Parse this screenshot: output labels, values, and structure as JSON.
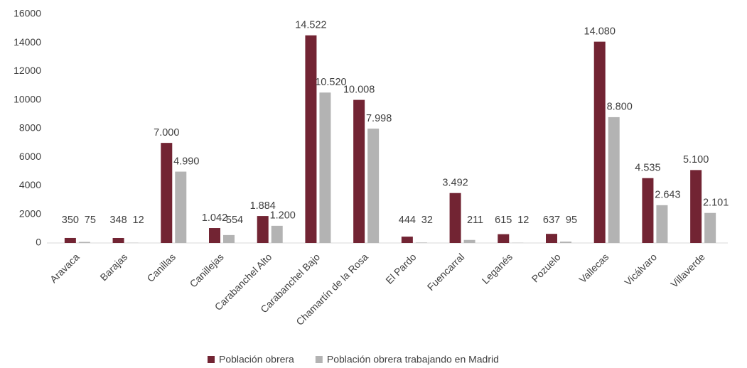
{
  "chart_data": {
    "type": "bar",
    "categories": [
      "Aravaca",
      "Barajas",
      "Canillas",
      "Canillejas",
      "Carabanchel Alto",
      "Carabanchel Bajo",
      "Chamartín de la Rosa",
      "El Pardo",
      "Fuencarral",
      "Leganés",
      "Pozuelo",
      "Vallecas",
      "Vicálvaro",
      "Villaverde"
    ],
    "series": [
      {
        "name": "Población obrera",
        "color": "#722433",
        "values": [
          350,
          348,
          7000,
          1042,
          1884,
          14522,
          10008,
          444,
          3492,
          615,
          637,
          14080,
          4535,
          5100
        ],
        "value_labels": [
          "350",
          "348",
          "7.000",
          "1.042",
          "1.884",
          "14.522",
          "10.008",
          "444",
          "3.492",
          "615",
          "637",
          "14.080",
          "4.535",
          "5.100"
        ]
      },
      {
        "name": "Población obrera trabajando en Madrid",
        "color": "#b3b3b3",
        "values": [
          75,
          12,
          4990,
          554,
          1200,
          10520,
          7998,
          32,
          211,
          12,
          95,
          8800,
          2643,
          2101
        ],
        "value_labels": [
          "75",
          "12",
          "4.990",
          "554",
          "1.200",
          "10.520",
          "7.998",
          "32",
          "211",
          "12",
          "95",
          "8.800",
          "2.643",
          "2.101"
        ]
      }
    ],
    "ylim": [
      0,
      16000
    ],
    "yticks": [
      0,
      2000,
      4000,
      6000,
      8000,
      10000,
      12000,
      14000,
      16000
    ],
    "grid": false,
    "legend": "bottom"
  }
}
